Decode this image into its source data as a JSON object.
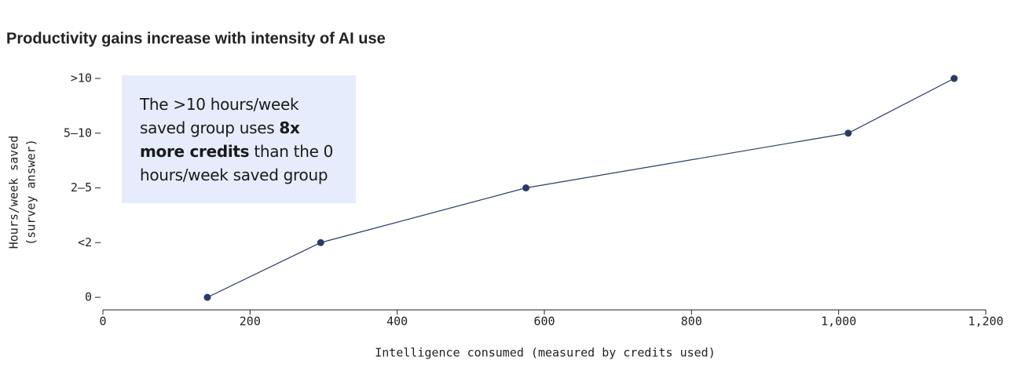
{
  "chart_data": {
    "type": "line",
    "title": "Productivity gains increase with intensity of AI use",
    "xlabel": "Intelligence consumed (measured by credits used)",
    "ylabel": "Hours/week saved",
    "ylabel_sub": "(survey answer)",
    "x": [
      142,
      296,
      575,
      1013,
      1157
    ],
    "values": [
      0,
      1,
      2,
      3,
      4
    ],
    "color": "#2b3a67",
    "xlim": [
      0,
      1200
    ],
    "xticks": [
      0,
      200,
      400,
      600,
      800,
      {
        "value": 1000,
        "label": "1,000"
      },
      {
        "value": 1200,
        "label": "1,200"
      }
    ],
    "ylim": [
      0,
      4
    ],
    "yticks": [
      0,
      {
        "value": 1,
        "label": "<2"
      },
      {
        "value": 2,
        "label": "2–5"
      },
      {
        "value": 3,
        "label": "5–10"
      },
      {
        "value": 4,
        "label": ">10"
      }
    ],
    "annotation": {
      "before": "The >10 hours/week saved group uses ",
      "bold": "8x more credits",
      "after": " than the 0 hours/week saved group",
      "background": "#e6ecfb"
    }
  }
}
